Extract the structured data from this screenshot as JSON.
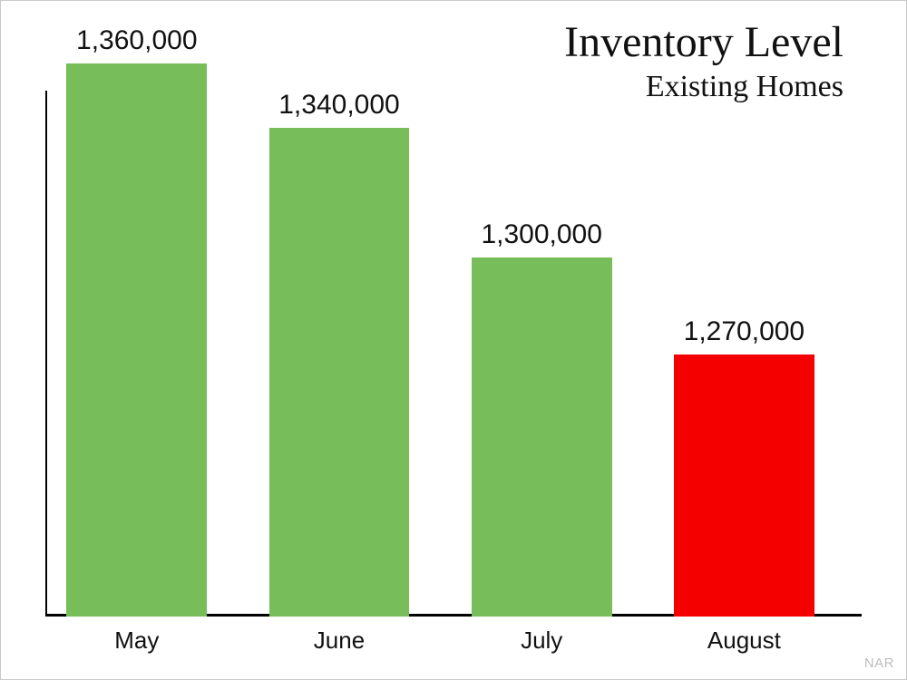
{
  "chart": {
    "type": "bar",
    "title": "Inventory Level",
    "subtitle": "Existing Homes",
    "title_font_family": "Georgia",
    "title_fontsize": 48,
    "subtitle_fontsize": 34,
    "categories": [
      "May",
      "June",
      "July",
      "August"
    ],
    "values": [
      1360000,
      1340000,
      1300000,
      1270000
    ],
    "value_labels": [
      "1,360,000",
      "1,340,000",
      "1,300,000",
      "1,270,000"
    ],
    "bar_colors": [
      "#77bd5a",
      "#77bd5a",
      "#77bd5a",
      "#f40000"
    ],
    "background_color": "#ffffff",
    "axis_color": "#000000",
    "text_color": "#111111",
    "frame_border_color": "#c9c9c9",
    "label_fontsize": 30,
    "category_fontsize": 26,
    "axis_line_width": 3,
    "y_axis_line_width": 2,
    "bar_width_pct": 17.2,
    "bar_gap_pct": 7.6,
    "first_bar_left_pct": 2.6,
    "ylim": [
      1189000,
      1360000
    ],
    "y_axis_top_fraction": 0.049,
    "source_label": "NAR",
    "source_color": "#bdbdbd",
    "source_fontsize": 15
  }
}
